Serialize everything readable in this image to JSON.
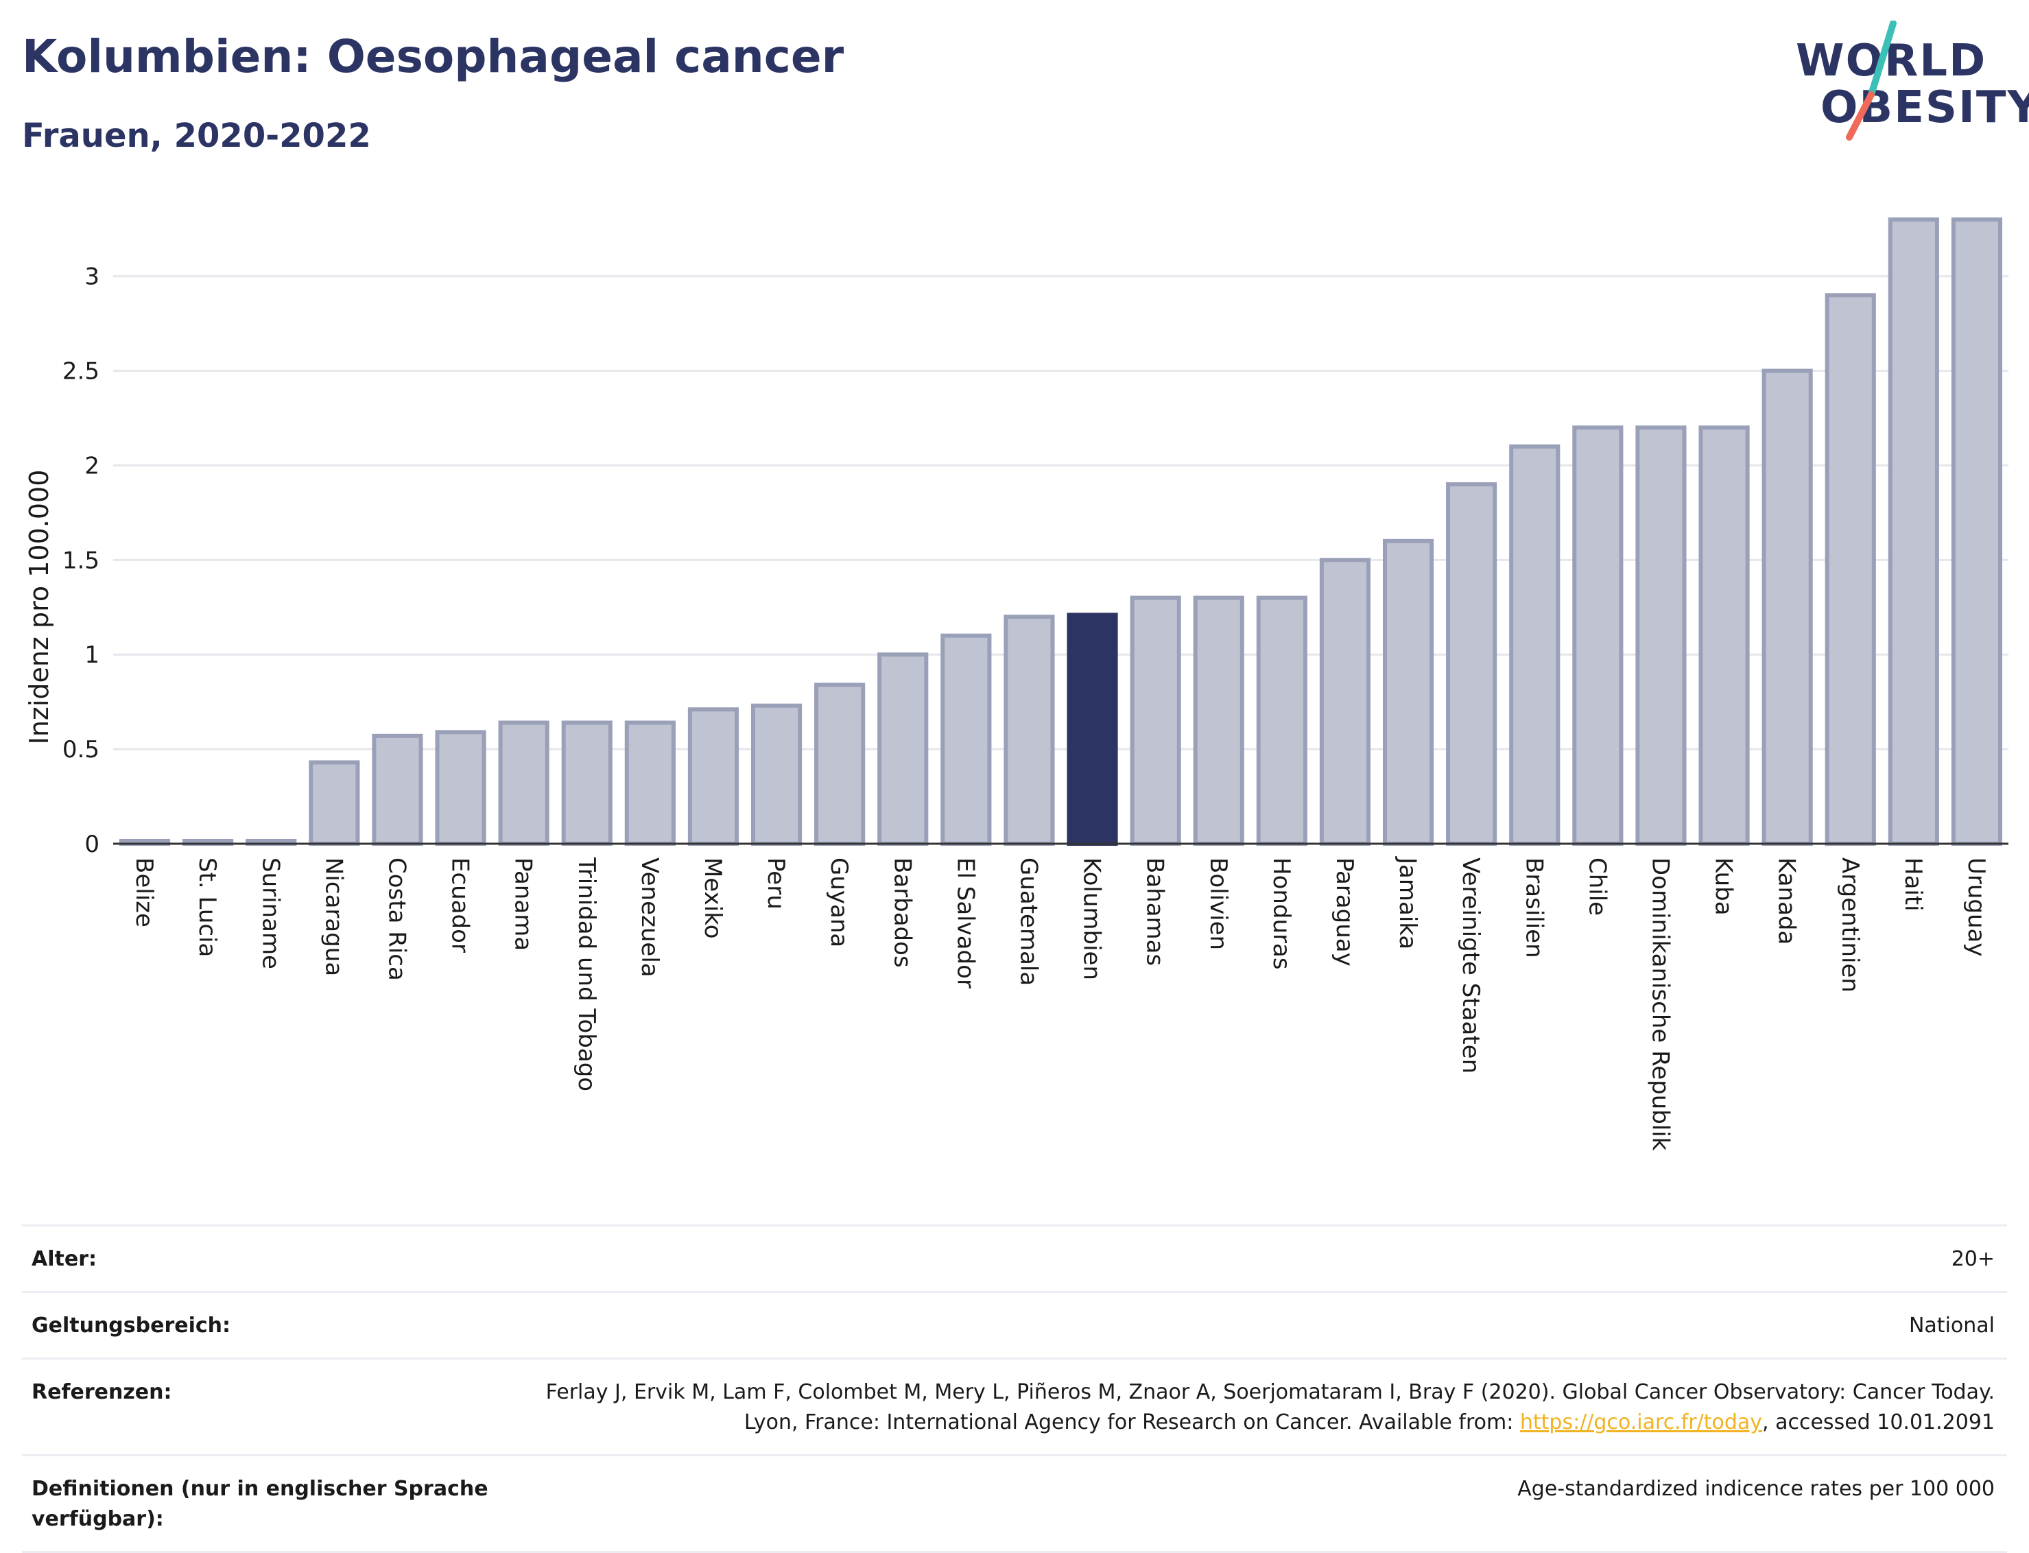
{
  "header": {
    "title": "Kolumbien: Oesophageal cancer",
    "subtitle": "Frauen, 2020-2022"
  },
  "logo": {
    "line1": "WORLD",
    "line2": "OBESITY",
    "slash_colors": [
      "#3cbfb6",
      "#ef6a5a"
    ]
  },
  "colors": {
    "bar": "#c0c3d1",
    "bar_border": "#9aa0b8",
    "highlight": "#2b3463",
    "axis": "#333333",
    "grid": "#e6e6ec",
    "link": "#f1b321"
  },
  "chart_data": {
    "type": "bar",
    "ylabel": "Inzidenz pro 100.000",
    "ylim": [
      0,
      3.3
    ],
    "yticks": [
      0,
      0.5,
      1,
      1.5,
      2,
      2.5,
      3
    ],
    "ytick_labels": [
      "0",
      "0.5",
      "1",
      "1.5",
      "2",
      "2.5",
      "3"
    ],
    "grid": true,
    "highlight": "Kolumbien",
    "categories": [
      "Belize",
      "St. Lucia",
      "Suriname",
      "Nicaragua",
      "Costa Rica",
      "Ecuador",
      "Panama",
      "Trinidad und Tobago",
      "Venezuela",
      "Mexiko",
      "Peru",
      "Guyana",
      "Barbados",
      "El Salvador",
      "Guatemala",
      "Kolumbien",
      "Bahamas",
      "Bolivien",
      "Honduras",
      "Paraguay",
      "Jamaika",
      "Vereinigte Staaten",
      "Brasilien",
      "Chile",
      "Dominikanische Republik",
      "Kuba",
      "Kanada",
      "Argentinien",
      "Haiti",
      "Uruguay"
    ],
    "values": [
      0,
      0,
      0,
      0.43,
      0.57,
      0.59,
      0.64,
      0.64,
      0.64,
      0.71,
      0.73,
      0.84,
      1.0,
      1.1,
      1.2,
      1.21,
      1.3,
      1.3,
      1.3,
      1.5,
      1.6,
      1.9,
      2.1,
      2.2,
      2.2,
      2.2,
      2.5,
      2.9,
      3.3,
      3.3
    ]
  },
  "meta": {
    "age_label": "Alter:",
    "age_value": "20+",
    "scope_label": "Geltungsbereich:",
    "scope_value": "National",
    "refs_label": "Referenzen:",
    "refs_text": "Ferlay J, Ervik M, Lam F, Colombet M, Mery L, Piñeros M, Znaor A, Soerjomataram I, Bray F (2020). Global Cancer Observatory: Cancer Today. Lyon, France: International Agency for Research on Cancer. Available from: ",
    "refs_link": "https://gco.iarc.fr/today",
    "refs_suffix": ", accessed 10.01.2091",
    "defs_label": "Definitionen (nur in englischer Sprache verfügbar):",
    "defs_value": "Age-standardized indicence rates per 100 000"
  }
}
